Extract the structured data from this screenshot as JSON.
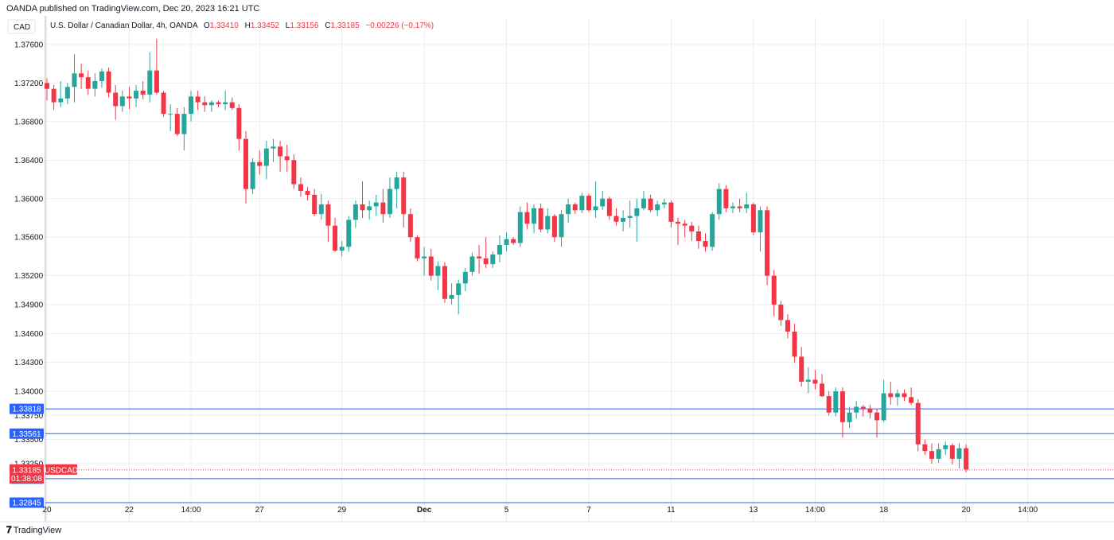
{
  "publisher_text": "OANDA published on TradingView.com, Dec 20, 2023 16:21 UTC",
  "currency_label": "CAD",
  "legend": {
    "title": "U.S. Dollar / Canadian Dollar, 4h, OANDA",
    "open_label": "O",
    "open": "1.33410",
    "high_label": "H",
    "high": "1.33452",
    "low_label": "L",
    "low": "1.33156",
    "close_label": "C",
    "close": "1.33185",
    "change": "−0.00226 (−0.17%)"
  },
  "brand": "TradingView",
  "colors": {
    "up": "#26a69a",
    "down": "#f23645",
    "level_line": "#2962ff",
    "grid": "#e0e3eb"
  },
  "chart_data": {
    "type": "candlestick",
    "ylim": [
      1.3268,
      1.3788
    ],
    "y_ticks": [
      1.376,
      1.372,
      1.368,
      1.364,
      1.36,
      1.356,
      1.352,
      1.349,
      1.346,
      1.343,
      1.34,
      1.3375,
      1.335,
      1.3325
    ],
    "x_ticks": [
      {
        "label": "20",
        "index": 0
      },
      {
        "label": "22",
        "index": 12
      },
      {
        "label": "14:00",
        "index": 21
      },
      {
        "label": "27",
        "index": 31
      },
      {
        "label": "29",
        "index": 43
      },
      {
        "label": "Dec",
        "index": 55
      },
      {
        "label": "5",
        "index": 67
      },
      {
        "label": "7",
        "index": 79
      },
      {
        "label": "11",
        "index": 91
      },
      {
        "label": "13",
        "index": 103
      },
      {
        "label": "14:00",
        "index": 112
      },
      {
        "label": "18",
        "index": 122
      },
      {
        "label": "20",
        "index": 134
      },
      {
        "label": "14:00",
        "index": 143
      }
    ],
    "levels": [
      1.33818,
      1.33561,
      1.33094,
      1.32845
    ],
    "last_price": {
      "value": 1.33185,
      "label": "1.33185",
      "symbol": "USDCAD",
      "countdown": "01:38:08"
    },
    "candles": [
      [
        1.372,
        1.3725,
        1.3702,
        1.3714
      ],
      [
        1.3714,
        1.3718,
        1.3692,
        1.37
      ],
      [
        1.37,
        1.3722,
        1.3695,
        1.3704
      ],
      [
        1.3704,
        1.372,
        1.3698,
        1.3716
      ],
      [
        1.3716,
        1.375,
        1.37,
        1.373
      ],
      [
        1.373,
        1.374,
        1.3714,
        1.3726
      ],
      [
        1.3726,
        1.3733,
        1.3708,
        1.3714
      ],
      [
        1.3714,
        1.373,
        1.3706,
        1.3722
      ],
      [
        1.3722,
        1.3735,
        1.3715,
        1.3732
      ],
      [
        1.3732,
        1.3736,
        1.3705,
        1.371
      ],
      [
        1.371,
        1.3718,
        1.3682,
        1.3696
      ],
      [
        1.3696,
        1.3712,
        1.369,
        1.3706
      ],
      [
        1.3706,
        1.3716,
        1.3693,
        1.3704
      ],
      [
        1.3704,
        1.3718,
        1.3695,
        1.3712
      ],
      [
        1.3712,
        1.3722,
        1.3703,
        1.3708
      ],
      [
        1.3708,
        1.3752,
        1.37,
        1.3733
      ],
      [
        1.3733,
        1.3766,
        1.3708,
        1.371
      ],
      [
        1.371,
        1.3712,
        1.3685,
        1.3688
      ],
      [
        1.3688,
        1.3698,
        1.367,
        1.3688
      ],
      [
        1.3688,
        1.3694,
        1.3665,
        1.3667
      ],
      [
        1.3667,
        1.3695,
        1.365,
        1.3688
      ],
      [
        1.3688,
        1.3712,
        1.368,
        1.3706
      ],
      [
        1.3706,
        1.3712,
        1.3692,
        1.37
      ],
      [
        1.37,
        1.3706,
        1.369,
        1.3697
      ],
      [
        1.3697,
        1.3702,
        1.369,
        1.37
      ],
      [
        1.37,
        1.3702,
        1.3695,
        1.3698
      ],
      [
        1.3698,
        1.3712,
        1.3692,
        1.37
      ],
      [
        1.37,
        1.3705,
        1.3692,
        1.3694
      ],
      [
        1.3694,
        1.3698,
        1.365,
        1.3662
      ],
      [
        1.3662,
        1.367,
        1.3595,
        1.361
      ],
      [
        1.361,
        1.3642,
        1.3605,
        1.3638
      ],
      [
        1.3638,
        1.365,
        1.3625,
        1.3634
      ],
      [
        1.3634,
        1.366,
        1.362,
        1.3652
      ],
      [
        1.3652,
        1.3662,
        1.3638,
        1.3654
      ],
      [
        1.3654,
        1.366,
        1.3628,
        1.3644
      ],
      [
        1.3644,
        1.3656,
        1.3628,
        1.364
      ],
      [
        1.364,
        1.3646,
        1.361,
        1.3615
      ],
      [
        1.3615,
        1.3622,
        1.3602,
        1.3608
      ],
      [
        1.3608,
        1.3612,
        1.3598,
        1.3604
      ],
      [
        1.3604,
        1.361,
        1.3582,
        1.3584
      ],
      [
        1.3584,
        1.3605,
        1.3578,
        1.3594
      ],
      [
        1.3594,
        1.3598,
        1.3555,
        1.3572
      ],
      [
        1.3572,
        1.358,
        1.3545,
        1.3546
      ],
      [
        1.3546,
        1.3556,
        1.354,
        1.355
      ],
      [
        1.355,
        1.3582,
        1.3545,
        1.3578
      ],
      [
        1.3578,
        1.3598,
        1.357,
        1.3594
      ],
      [
        1.3594,
        1.3618,
        1.358,
        1.3588
      ],
      [
        1.3588,
        1.3598,
        1.3578,
        1.3592
      ],
      [
        1.3592,
        1.3604,
        1.3582,
        1.3596
      ],
      [
        1.3596,
        1.361,
        1.3575,
        1.3584
      ],
      [
        1.3584,
        1.3622,
        1.358,
        1.361
      ],
      [
        1.361,
        1.3628,
        1.359,
        1.3622
      ],
      [
        1.3622,
        1.3628,
        1.357,
        1.3584
      ],
      [
        1.3584,
        1.359,
        1.3555,
        1.356
      ],
      [
        1.356,
        1.3562,
        1.3535,
        1.3538
      ],
      [
        1.3538,
        1.355,
        1.352,
        1.354
      ],
      [
        1.354,
        1.3548,
        1.3515,
        1.352
      ],
      [
        1.352,
        1.3535,
        1.3505,
        1.353
      ],
      [
        1.353,
        1.3534,
        1.3492,
        1.3496
      ],
      [
        1.3496,
        1.3512,
        1.349,
        1.35
      ],
      [
        1.35,
        1.3516,
        1.348,
        1.3512
      ],
      [
        1.3512,
        1.3528,
        1.3504,
        1.3524
      ],
      [
        1.3524,
        1.3544,
        1.352,
        1.354
      ],
      [
        1.354,
        1.3552,
        1.3522,
        1.3538
      ],
      [
        1.3538,
        1.356,
        1.3528,
        1.3532
      ],
      [
        1.3532,
        1.3545,
        1.3528,
        1.3542
      ],
      [
        1.3542,
        1.3562,
        1.3534,
        1.3552
      ],
      [
        1.3552,
        1.3565,
        1.3545,
        1.3558
      ],
      [
        1.3558,
        1.356,
        1.3552,
        1.3554
      ],
      [
        1.3554,
        1.3592,
        1.355,
        1.3586
      ],
      [
        1.3586,
        1.3596,
        1.3568,
        1.3574
      ],
      [
        1.3574,
        1.3594,
        1.3564,
        1.359
      ],
      [
        1.359,
        1.3595,
        1.3565,
        1.3568
      ],
      [
        1.3568,
        1.359,
        1.3564,
        1.3582
      ],
      [
        1.3582,
        1.3584,
        1.3555,
        1.356
      ],
      [
        1.356,
        1.3588,
        1.355,
        1.3584
      ],
      [
        1.3584,
        1.36,
        1.3575,
        1.3594
      ],
      [
        1.3594,
        1.3596,
        1.3584,
        1.3588
      ],
      [
        1.3588,
        1.3606,
        1.3585,
        1.3603
      ],
      [
        1.3603,
        1.3605,
        1.3586,
        1.3588
      ],
      [
        1.3588,
        1.3618,
        1.358,
        1.3592
      ],
      [
        1.3592,
        1.3608,
        1.3588,
        1.36
      ],
      [
        1.36,
        1.3602,
        1.3578,
        1.3582
      ],
      [
        1.3582,
        1.359,
        1.3572,
        1.3576
      ],
      [
        1.3576,
        1.3588,
        1.3566,
        1.358
      ],
      [
        1.358,
        1.3598,
        1.357,
        1.3582
      ],
      [
        1.3582,
        1.36,
        1.3555,
        1.359
      ],
      [
        1.359,
        1.3608,
        1.3588,
        1.36
      ],
      [
        1.36,
        1.3604,
        1.3586,
        1.3588
      ],
      [
        1.3588,
        1.3598,
        1.3582,
        1.3594
      ],
      [
        1.3594,
        1.36,
        1.359,
        1.3596
      ],
      [
        1.3596,
        1.3598,
        1.357,
        1.3576
      ],
      [
        1.3576,
        1.358,
        1.3552,
        1.3574
      ],
      [
        1.3574,
        1.3578,
        1.356,
        1.3572
      ],
      [
        1.3572,
        1.3576,
        1.3556,
        1.3566
      ],
      [
        1.3566,
        1.3572,
        1.3548,
        1.3556
      ],
      [
        1.3556,
        1.3564,
        1.3545,
        1.355
      ],
      [
        1.355,
        1.3586,
        1.3546,
        1.3584
      ],
      [
        1.3584,
        1.3616,
        1.3578,
        1.361
      ],
      [
        1.361,
        1.3614,
        1.3586,
        1.359
      ],
      [
        1.359,
        1.3596,
        1.3585,
        1.3592
      ],
      [
        1.3592,
        1.36,
        1.3586,
        1.359
      ],
      [
        1.359,
        1.3606,
        1.3585,
        1.3594
      ],
      [
        1.3594,
        1.3596,
        1.3562,
        1.3565
      ],
      [
        1.3565,
        1.3592,
        1.3545,
        1.3588
      ],
      [
        1.3588,
        1.3592,
        1.351,
        1.352
      ],
      [
        1.352,
        1.3526,
        1.3478,
        1.349
      ],
      [
        1.349,
        1.3494,
        1.3468,
        1.3474
      ],
      [
        1.3474,
        1.348,
        1.3455,
        1.3462
      ],
      [
        1.3462,
        1.347,
        1.343,
        1.3436
      ],
      [
        1.3436,
        1.3446,
        1.3405,
        1.341
      ],
      [
        1.341,
        1.3425,
        1.3398,
        1.3412
      ],
      [
        1.3412,
        1.3422,
        1.3402,
        1.3408
      ],
      [
        1.3408,
        1.3418,
        1.3394,
        1.3395
      ],
      [
        1.3395,
        1.34,
        1.3375,
        1.3378
      ],
      [
        1.3378,
        1.3404,
        1.3374,
        1.34
      ],
      [
        1.34,
        1.3404,
        1.3352,
        1.3368
      ],
      [
        1.3368,
        1.3384,
        1.3362,
        1.3378
      ],
      [
        1.3378,
        1.339,
        1.3372,
        1.3384
      ],
      [
        1.3384,
        1.3386,
        1.3374,
        1.3382
      ],
      [
        1.3382,
        1.3386,
        1.3372,
        1.3378
      ],
      [
        1.3378,
        1.3382,
        1.3352,
        1.337
      ],
      [
        1.337,
        1.3412,
        1.3368,
        1.3398
      ],
      [
        1.3398,
        1.341,
        1.3386,
        1.3394
      ],
      [
        1.3394,
        1.3402,
        1.3385,
        1.3398
      ],
      [
        1.3398,
        1.3402,
        1.339,
        1.3394
      ],
      [
        1.3394,
        1.3404,
        1.3386,
        1.3388
      ],
      [
        1.3388,
        1.3392,
        1.3338,
        1.3345
      ],
      [
        1.3345,
        1.335,
        1.3334,
        1.3338
      ],
      [
        1.3338,
        1.3346,
        1.3325,
        1.333
      ],
      [
        1.333,
        1.3346,
        1.3326,
        1.334
      ],
      [
        1.334,
        1.3348,
        1.3334,
        1.3344
      ],
      [
        1.3344,
        1.3346,
        1.3324,
        1.333
      ],
      [
        1.333,
        1.3346,
        1.332,
        1.3341
      ],
      [
        1.3341,
        1.3345,
        1.3316,
        1.3319
      ]
    ]
  }
}
